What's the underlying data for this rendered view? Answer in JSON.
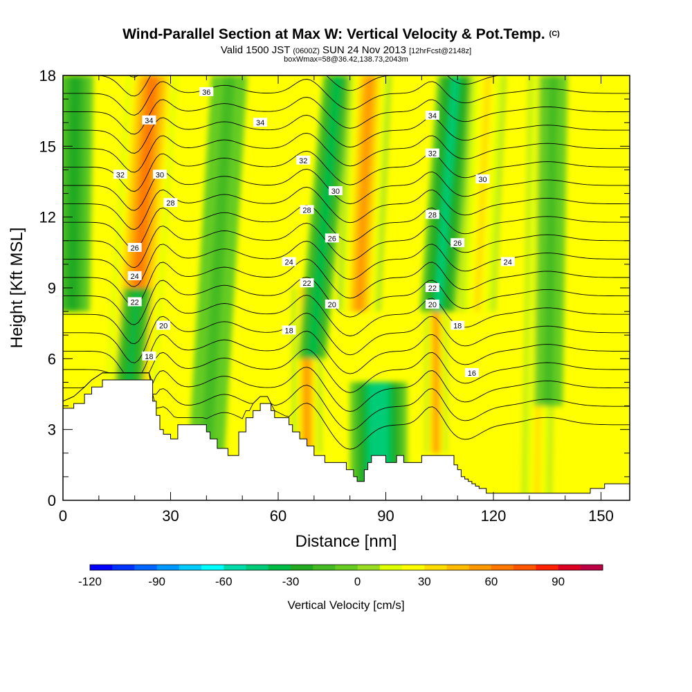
{
  "chart_data": {
    "type": "heatmap",
    "title": "Wind-Parallel Section at Max W: Vertical Velocity & Pot.Temp.",
    "title_mark": "(C)",
    "subtitle_parts": [
      "Valid 1500 JST",
      "(0600Z)",
      "SUN 24 Nov 2013",
      "[12hrFcst@2148z]"
    ],
    "subtitle2": "boxWmax=58@36.42,138.73,2043m",
    "xlabel": "Distance [nm]",
    "ylabel": "Height [Kft MSL]",
    "xlim": [
      0,
      158
    ],
    "ylim": [
      0,
      18
    ],
    "x_ticks": [
      0,
      30,
      60,
      90,
      120,
      150
    ],
    "y_ticks": [
      0,
      3,
      6,
      9,
      12,
      15,
      18
    ],
    "x_tick_labels": [
      "0",
      "30",
      "60",
      "90",
      "120",
      "150"
    ],
    "y_tick_labels": [
      "0",
      "3",
      "6",
      "9",
      "12",
      "15",
      "18"
    ],
    "colorbar": {
      "title": "Vertical Velocity [cm/s]",
      "min": -120,
      "max": 110,
      "step": 10,
      "tick_values": [
        -120,
        -90,
        -60,
        -30,
        0,
        30,
        60,
        90
      ],
      "tick_labels": [
        "-120",
        "-90",
        "-60",
        "-30",
        "0",
        "30",
        "60",
        "90"
      ],
      "colors": [
        "#0000ff",
        "#0033ff",
        "#0066ff",
        "#0099ff",
        "#00ccff",
        "#00ffff",
        "#00ddaa",
        "#00cc77",
        "#00bb44",
        "#22aa22",
        "#44bb22",
        "#66cc22",
        "#99dd22",
        "#ddff00",
        "#ffff00",
        "#ffdd00",
        "#ffbb00",
        "#ff9900",
        "#ff7700",
        "#ff5500",
        "#ff2200",
        "#dd0022",
        "#bb0044",
        "#990066",
        "#660099",
        "#440099"
      ]
    },
    "vertical_velocity_features": [
      {
        "x_center": 22,
        "y_range": [
          5,
          18
        ],
        "w": 65,
        "width_nm": 7,
        "tilt_nm_per_kft": 0.45
      },
      {
        "x_center": 19,
        "y_range": [
          3,
          9
        ],
        "w": -35,
        "width_nm": 4,
        "tilt_nm_per_kft": 0.6
      },
      {
        "x_center": 3,
        "y_range": [
          8,
          18
        ],
        "w": -25,
        "width_nm": 5,
        "tilt_nm_per_kft": 0.1
      },
      {
        "x_center": 43,
        "y_range": [
          1,
          18
        ],
        "w": -15,
        "width_nm": 5,
        "tilt_nm_per_kft": 0.4
      },
      {
        "x_center": 68,
        "y_range": [
          2,
          9
        ],
        "w": 55,
        "width_nm": 4,
        "tilt_nm_per_kft": 0
      },
      {
        "x_center": 73,
        "y_range": [
          6,
          18
        ],
        "w": -40,
        "width_nm": 4,
        "tilt_nm_per_kft": 0.6
      },
      {
        "x_center": 84,
        "y_range": [
          8,
          18
        ],
        "w": 50,
        "width_nm": 6,
        "tilt_nm_per_kft": 0.3
      },
      {
        "x_center": 88,
        "y_range": [
          0,
          5
        ],
        "w": -50,
        "width_nm": 8,
        "tilt_nm_per_kft": 0
      },
      {
        "x_center": 104,
        "y_range": [
          2,
          8
        ],
        "w": 50,
        "width_nm": 3,
        "tilt_nm_per_kft": 0
      },
      {
        "x_center": 107,
        "y_range": [
          8,
          18
        ],
        "w": -45,
        "width_nm": 5,
        "tilt_nm_per_kft": 0.5
      },
      {
        "x_center": 117,
        "y_range": [
          8,
          18
        ],
        "w": 30,
        "width_nm": 5,
        "tilt_nm_per_kft": 0.3
      },
      {
        "x_center": 133,
        "y_range": [
          0,
          18
        ],
        "w": 35,
        "width_nm": 4,
        "tilt_nm_per_kft": 0.1
      },
      {
        "x_center": 136,
        "y_range": [
          4,
          18
        ],
        "w": -15,
        "width_nm": 4,
        "tilt_nm_per_kft": 0.1
      }
    ],
    "terrain": {
      "x": [
        0,
        3,
        6,
        8,
        11,
        13,
        15,
        24,
        25,
        26,
        27,
        28,
        30,
        31,
        32,
        39,
        40,
        41,
        42,
        43,
        44,
        45,
        46,
        47,
        48,
        49,
        50,
        51,
        52,
        53,
        55,
        57,
        58,
        59,
        63,
        64,
        65,
        66,
        67,
        68,
        69,
        70,
        71,
        72,
        73,
        75,
        78,
        79,
        80,
        81,
        82,
        83,
        84,
        85,
        86,
        90,
        91,
        93,
        94,
        95,
        96,
        100,
        101,
        108,
        109,
        110,
        111,
        112,
        113,
        114,
        115,
        116,
        118,
        127,
        128,
        133,
        134,
        146,
        147,
        148,
        151,
        153,
        158
      ],
      "y": [
        3.9,
        4.1,
        4.5,
        4.8,
        5.1,
        5.1,
        5.1,
        5.1,
        4.2,
        3.6,
        3.0,
        2.8,
        2.6,
        2.6,
        3.2,
        3.2,
        2.9,
        2.6,
        2.6,
        2.2,
        2.2,
        2.2,
        1.9,
        1.9,
        1.9,
        2.9,
        2.9,
        3.5,
        3.5,
        3.8,
        4.1,
        4.1,
        3.8,
        3.5,
        3.2,
        2.9,
        2.9,
        2.6,
        2.6,
        2.3,
        2.3,
        1.9,
        1.9,
        1.9,
        1.6,
        1.6,
        1.6,
        1.3,
        1.3,
        1.0,
        0.8,
        0.8,
        1.3,
        1.6,
        1.9,
        1.6,
        1.6,
        1.9,
        1.9,
        1.6,
        1.6,
        1.9,
        1.9,
        1.9,
        1.5,
        1.3,
        1.0,
        0.9,
        0.8,
        0.7,
        0.6,
        0.5,
        0.3,
        0.3,
        0.3,
        0.3,
        0.3,
        0.3,
        0.5,
        0.5,
        0.7,
        0.7,
        0.7
      ]
    },
    "potential_temperature_contours": {
      "values": [
        14,
        15,
        16,
        17,
        18,
        19,
        20,
        21,
        22,
        23,
        24,
        25,
        26,
        27,
        28,
        29,
        30,
        31,
        32,
        33,
        34,
        35,
        36,
        37
      ],
      "labeled": [
        {
          "value": "36",
          "x": 40,
          "y": 17.3
        },
        {
          "value": "34",
          "x": 24,
          "y": 16.1
        },
        {
          "value": "34",
          "x": 55,
          "y": 16.0
        },
        {
          "value": "34",
          "x": 103,
          "y": 16.3
        },
        {
          "value": "32",
          "x": 16,
          "y": 13.8
        },
        {
          "value": "32",
          "x": 67,
          "y": 14.4
        },
        {
          "value": "32",
          "x": 103,
          "y": 14.7
        },
        {
          "value": "30",
          "x": 27,
          "y": 13.8
        },
        {
          "value": "30",
          "x": 76,
          "y": 13.1
        },
        {
          "value": "30",
          "x": 117,
          "y": 13.6
        },
        {
          "value": "28",
          "x": 30,
          "y": 12.6
        },
        {
          "value": "28",
          "x": 68,
          "y": 12.3
        },
        {
          "value": "28",
          "x": 103,
          "y": 12.1
        },
        {
          "value": "26",
          "x": 20,
          "y": 10.7
        },
        {
          "value": "26",
          "x": 75,
          "y": 11.1
        },
        {
          "value": "26",
          "x": 110,
          "y": 10.9
        },
        {
          "value": "24",
          "x": 20,
          "y": 9.5
        },
        {
          "value": "24",
          "x": 63,
          "y": 10.1
        },
        {
          "value": "24",
          "x": 124,
          "y": 10.1
        },
        {
          "value": "22",
          "x": 20,
          "y": 8.4
        },
        {
          "value": "22",
          "x": 68,
          "y": 9.2
        },
        {
          "value": "22",
          "x": 103,
          "y": 9.0
        },
        {
          "value": "20",
          "x": 28,
          "y": 7.4
        },
        {
          "value": "20",
          "x": 75,
          "y": 8.3
        },
        {
          "value": "20",
          "x": 103,
          "y": 8.3
        },
        {
          "value": "18",
          "x": 24,
          "y": 6.1
        },
        {
          "value": "18",
          "x": 63,
          "y": 7.2
        },
        {
          "value": "18",
          "x": 110,
          "y": 7.4
        },
        {
          "value": "16",
          "x": 114,
          "y": 5.4
        }
      ]
    }
  }
}
